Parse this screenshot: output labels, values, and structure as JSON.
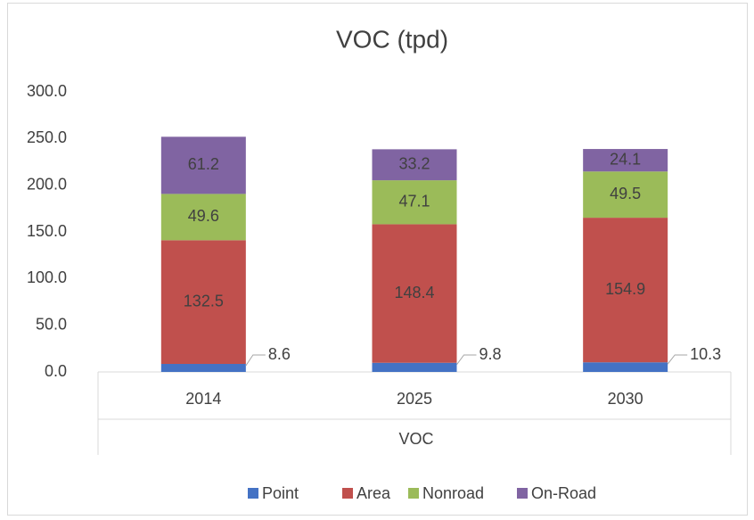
{
  "chart_data": {
    "type": "stacked_bar",
    "title": "VOC (tpd)",
    "x_label": "VOC",
    "categories": [
      "2014",
      "2025",
      "2030"
    ],
    "series": [
      {
        "name": "Point",
        "color": "#4472c4",
        "values": [
          8.6,
          9.8,
          10.3
        ]
      },
      {
        "name": "Area",
        "color": "#c0504d",
        "values": [
          132.5,
          148.4,
          154.9
        ]
      },
      {
        "name": "Nonroad",
        "color": "#9bbb59",
        "values": [
          49.6,
          47.1,
          49.5
        ]
      },
      {
        "name": "On-Road",
        "color": "#8064a2",
        "values": [
          61.2,
          33.2,
          24.1
        ]
      }
    ],
    "ylim": [
      0,
      300
    ],
    "yticks": [
      {
        "value": 0,
        "label": "0.0"
      },
      {
        "value": 50,
        "label": "50.0"
      },
      {
        "value": 100,
        "label": "100.0"
      },
      {
        "value": 150,
        "label": "150.0"
      },
      {
        "value": 200,
        "label": "200.0"
      },
      {
        "value": 250,
        "label": "250.0"
      },
      {
        "value": 300,
        "label": "300.0"
      }
    ],
    "grid": false,
    "legend": "bottom"
  }
}
